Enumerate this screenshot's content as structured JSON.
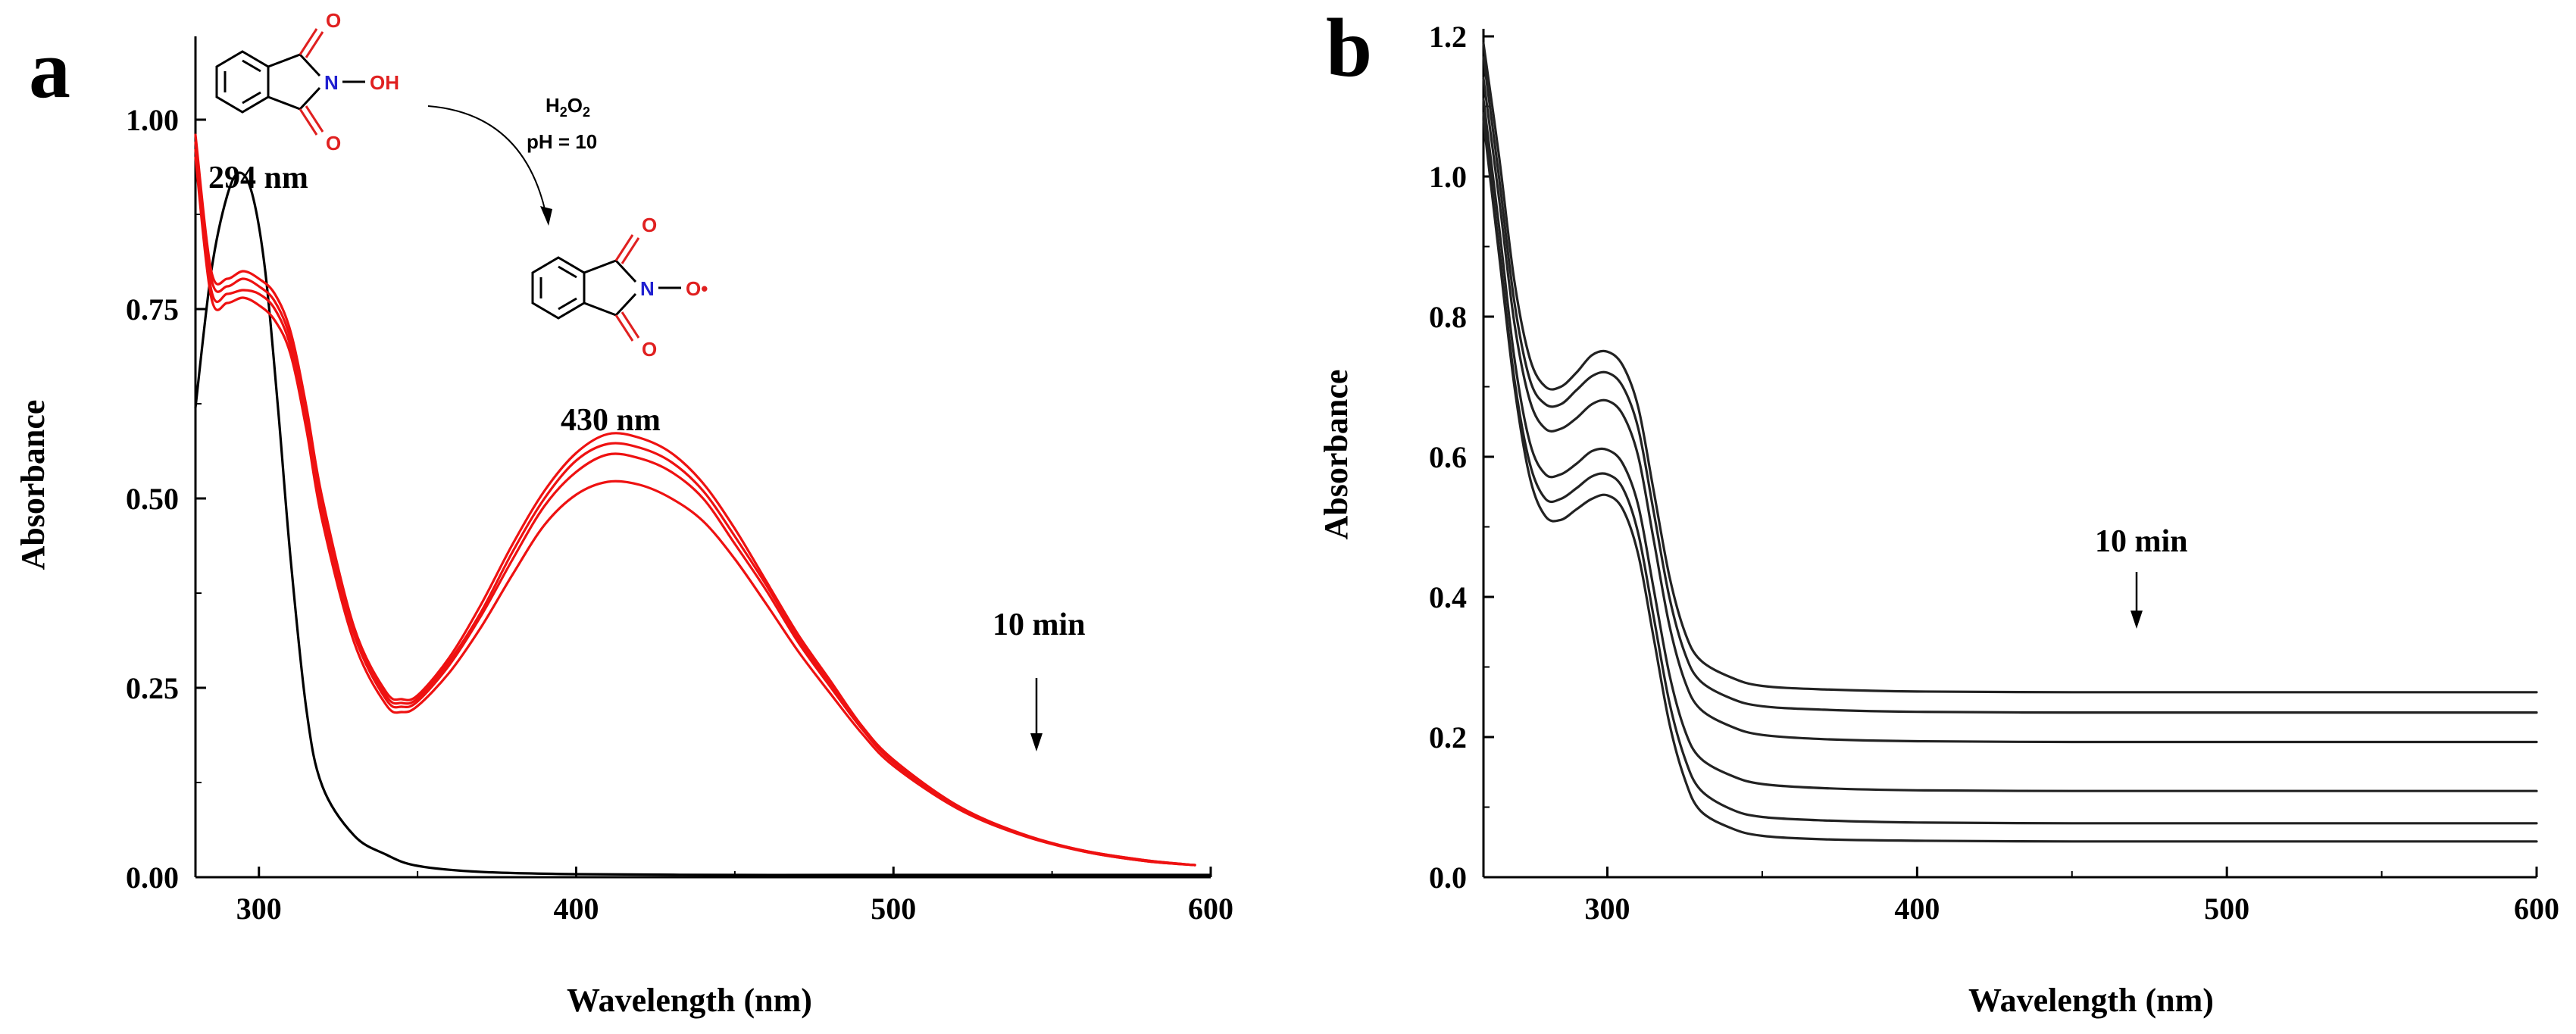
{
  "colors": {
    "axis": "#000000",
    "reference_line": "#000000",
    "timecourse_a": "#ee1111",
    "timecourse_b": "#222222",
    "chem_oxygen": "#e02020",
    "chem_nitrogen": "#2020d0"
  },
  "chart_data": [
    {
      "panel": "a",
      "type": "line",
      "xlabel": "Wavelength (nm)",
      "ylabel": "Absorbance",
      "xlim": [
        280,
        600
      ],
      "ylim": [
        0,
        1.1
      ],
      "x_ticks": [
        300,
        400,
        500,
        600
      ],
      "y_ticks": [
        0.0,
        0.25,
        0.5,
        0.75,
        1.0
      ],
      "x_tick_labels": [
        "300",
        "400",
        "500",
        "600"
      ],
      "y_tick_labels": [
        "0.00",
        "0.25",
        "0.50",
        "0.75",
        "1.00"
      ],
      "annotations": {
        "peak_uv": "294 nm",
        "peak_vis": "430 nm",
        "time": "10 min"
      },
      "reaction": {
        "reagent": "H2O2",
        "condition": "pH = 10",
        "reactant_groups": {
          "N": "N",
          "OH": "OH",
          "O": "O"
        },
        "product_groups": {
          "N": "N",
          "O_radical": "O•",
          "O": "O"
        }
      },
      "series": [
        {
          "role": "reference",
          "color": "#000000",
          "x": [
            280,
            285,
            290,
            294,
            298,
            302,
            306,
            310,
            315,
            320,
            330,
            340,
            350,
            370,
            400,
            450,
            500,
            550,
            600
          ],
          "y": [
            0.62,
            0.8,
            0.9,
            0.93,
            0.9,
            0.8,
            0.62,
            0.42,
            0.22,
            0.12,
            0.055,
            0.03,
            0.015,
            0.007,
            0.004,
            0.003,
            0.003,
            0.003,
            0.003
          ]
        },
        {
          "role": "time-series",
          "color": "#ee1111",
          "x": [
            280,
            285,
            290,
            295,
            300,
            305,
            310,
            315,
            320,
            330,
            340,
            345,
            350,
            360,
            370,
            380,
            390,
            400,
            410,
            420,
            430,
            440,
            450,
            460,
            470,
            480,
            490,
            500,
            520,
            540,
            560,
            580,
            595
          ],
          "y": [
            0.98,
            0.8,
            0.79,
            0.8,
            0.79,
            0.77,
            0.72,
            0.62,
            0.5,
            0.33,
            0.245,
            0.235,
            0.24,
            0.29,
            0.36,
            0.44,
            0.51,
            0.56,
            0.585,
            0.58,
            0.56,
            0.52,
            0.46,
            0.39,
            0.32,
            0.26,
            0.2,
            0.155,
            0.095,
            0.058,
            0.035,
            0.022,
            0.016
          ]
        },
        {
          "role": "time-series",
          "color": "#ee1111",
          "x": [
            280,
            285,
            290,
            295,
            300,
            305,
            310,
            315,
            320,
            330,
            340,
            345,
            350,
            360,
            370,
            380,
            390,
            400,
            410,
            420,
            430,
            440,
            450,
            460,
            470,
            480,
            490,
            500,
            520,
            540,
            560,
            580,
            595
          ],
          "y": [
            0.97,
            0.79,
            0.78,
            0.79,
            0.78,
            0.76,
            0.71,
            0.61,
            0.49,
            0.325,
            0.24,
            0.23,
            0.236,
            0.285,
            0.35,
            0.43,
            0.5,
            0.55,
            0.572,
            0.567,
            0.548,
            0.51,
            0.45,
            0.385,
            0.315,
            0.256,
            0.198,
            0.153,
            0.094,
            0.057,
            0.035,
            0.022,
            0.016
          ]
        },
        {
          "role": "time-series",
          "color": "#ee1111",
          "x": [
            280,
            285,
            290,
            295,
            300,
            305,
            310,
            315,
            320,
            330,
            340,
            345,
            350,
            360,
            370,
            380,
            390,
            400,
            410,
            420,
            430,
            440,
            450,
            460,
            470,
            480,
            490,
            500,
            520,
            540,
            560,
            580,
            595
          ],
          "y": [
            0.96,
            0.775,
            0.77,
            0.775,
            0.77,
            0.75,
            0.7,
            0.6,
            0.48,
            0.32,
            0.235,
            0.225,
            0.232,
            0.28,
            0.345,
            0.42,
            0.49,
            0.535,
            0.558,
            0.553,
            0.535,
            0.5,
            0.44,
            0.378,
            0.31,
            0.252,
            0.196,
            0.151,
            0.093,
            0.057,
            0.034,
            0.021,
            0.016
          ]
        },
        {
          "role": "time-series",
          "color": "#ee1111",
          "x": [
            280,
            285,
            290,
            295,
            300,
            305,
            310,
            315,
            320,
            330,
            340,
            345,
            350,
            360,
            370,
            380,
            390,
            400,
            410,
            420,
            430,
            440,
            450,
            460,
            470,
            480,
            490,
            500,
            520,
            540,
            560,
            580,
            595
          ],
          "y": [
            0.95,
            0.765,
            0.758,
            0.765,
            0.755,
            0.735,
            0.69,
            0.59,
            0.47,
            0.31,
            0.228,
            0.218,
            0.226,
            0.27,
            0.33,
            0.4,
            0.465,
            0.505,
            0.522,
            0.518,
            0.5,
            0.47,
            0.42,
            0.36,
            0.298,
            0.243,
            0.19,
            0.147,
            0.091,
            0.056,
            0.034,
            0.021,
            0.016
          ]
        }
      ]
    },
    {
      "panel": "b",
      "type": "line",
      "xlabel": "Wavelength (nm)",
      "ylabel": "Absorbance",
      "xlim": [
        260,
        600
      ],
      "ylim": [
        0,
        1.2
      ],
      "x_ticks": [
        300,
        400,
        500,
        600
      ],
      "y_ticks": [
        0.0,
        0.2,
        0.4,
        0.6,
        0.8,
        1.0,
        1.2
      ],
      "x_tick_labels": [
        "300",
        "400",
        "500",
        "600"
      ],
      "y_tick_labels": [
        "0.0",
        "0.2",
        "0.4",
        "0.6",
        "0.8",
        "1.0",
        "1.2"
      ],
      "annotations": {
        "time": "10 min"
      },
      "x": [
        260,
        265,
        270,
        275,
        280,
        285,
        290,
        295,
        300,
        305,
        310,
        315,
        320,
        325,
        330,
        340,
        350,
        370,
        400,
        450,
        500,
        550,
        600
      ],
      "series": [
        {
          "y": [
            1.19,
            1.03,
            0.85,
            0.74,
            0.7,
            0.7,
            0.72,
            0.745,
            0.75,
            0.73,
            0.67,
            0.55,
            0.43,
            0.35,
            0.31,
            0.285,
            0.273,
            0.268,
            0.265,
            0.264,
            0.264,
            0.264,
            0.264
          ]
        },
        {
          "y": [
            1.17,
            1.0,
            0.82,
            0.71,
            0.675,
            0.675,
            0.695,
            0.715,
            0.72,
            0.7,
            0.64,
            0.52,
            0.4,
            0.32,
            0.28,
            0.255,
            0.244,
            0.239,
            0.236,
            0.235,
            0.235,
            0.235,
            0.235
          ]
        },
        {
          "y": [
            1.14,
            0.97,
            0.79,
            0.68,
            0.64,
            0.64,
            0.655,
            0.675,
            0.68,
            0.66,
            0.6,
            0.48,
            0.36,
            0.28,
            0.24,
            0.215,
            0.203,
            0.197,
            0.194,
            0.193,
            0.193,
            0.193,
            0.193
          ]
        },
        {
          "y": [
            1.11,
            0.93,
            0.74,
            0.62,
            0.575,
            0.575,
            0.59,
            0.608,
            0.61,
            0.59,
            0.53,
            0.41,
            0.29,
            0.21,
            0.17,
            0.145,
            0.133,
            0.127,
            0.124,
            0.123,
            0.123,
            0.123,
            0.123
          ]
        },
        {
          "y": [
            1.09,
            0.9,
            0.71,
            0.59,
            0.54,
            0.54,
            0.555,
            0.572,
            0.575,
            0.555,
            0.49,
            0.37,
            0.25,
            0.17,
            0.125,
            0.097,
            0.086,
            0.081,
            0.078,
            0.077,
            0.077,
            0.077,
            0.077
          ]
        },
        {
          "y": [
            1.08,
            0.89,
            0.7,
            0.57,
            0.515,
            0.51,
            0.525,
            0.54,
            0.545,
            0.525,
            0.46,
            0.34,
            0.22,
            0.14,
            0.095,
            0.07,
            0.059,
            0.054,
            0.052,
            0.051,
            0.051,
            0.051,
            0.051
          ]
        }
      ]
    }
  ]
}
